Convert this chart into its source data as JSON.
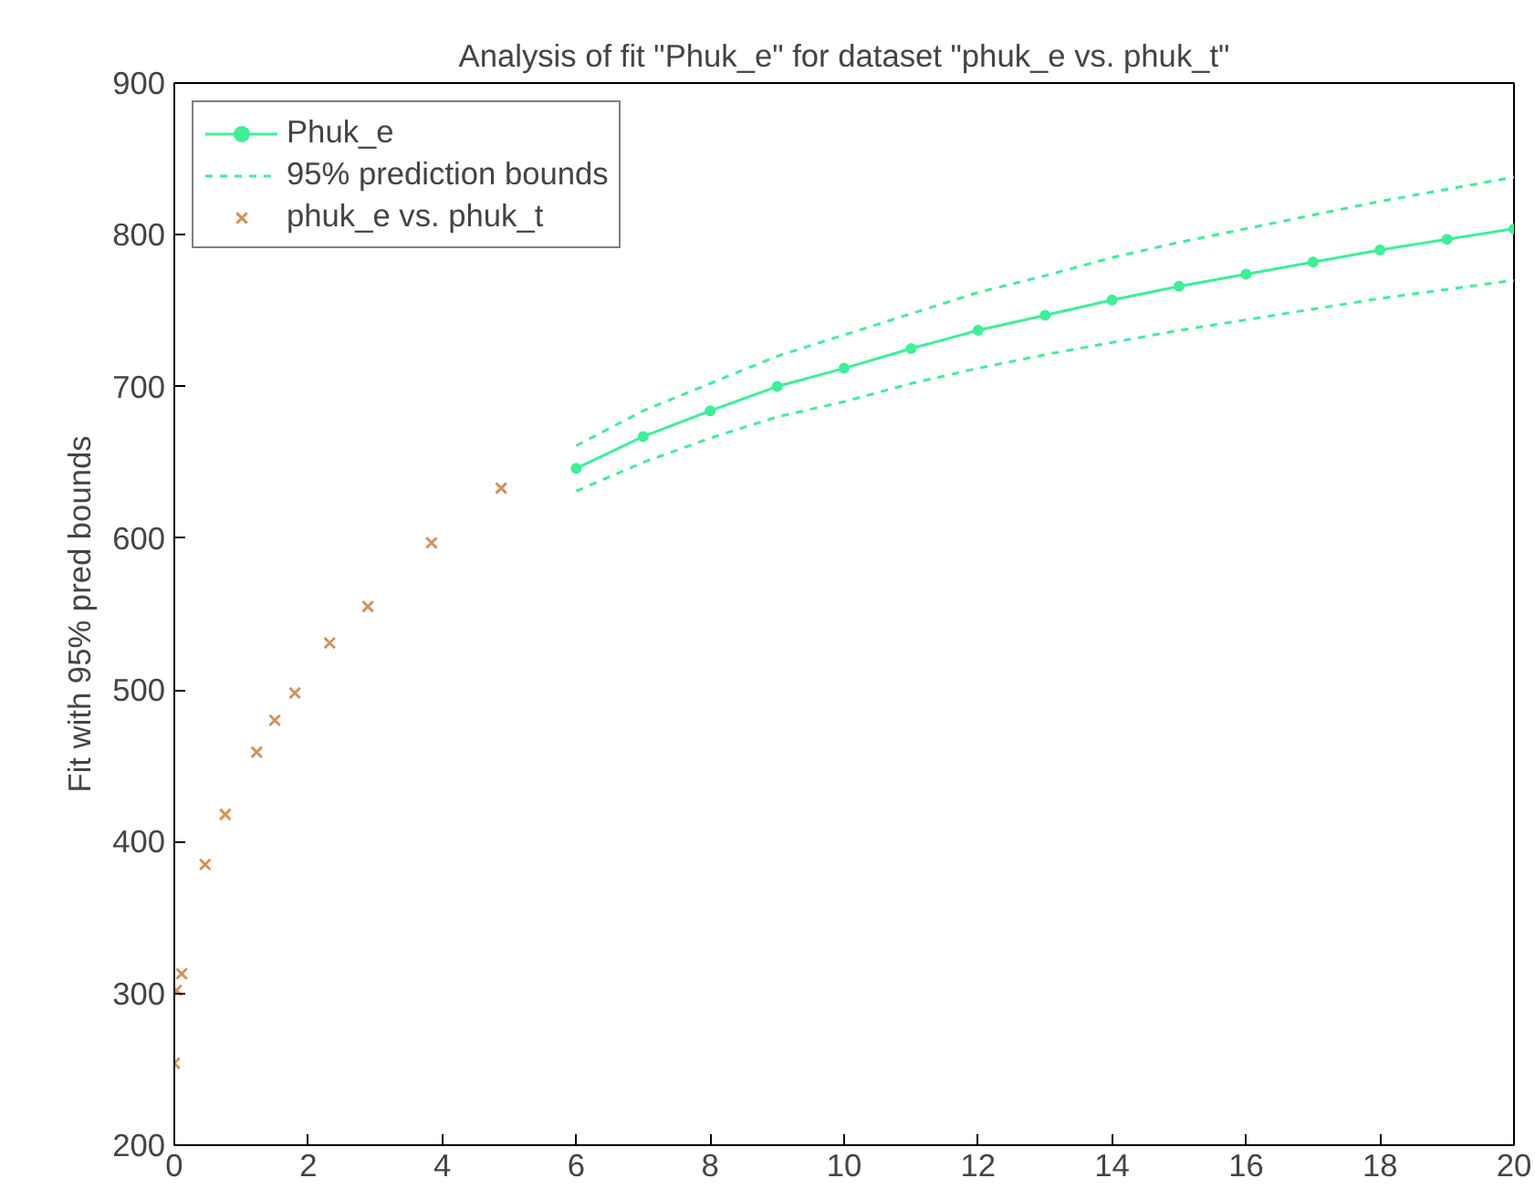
{
  "chart_data": {
    "type": "line",
    "title": "Analysis of fit \"Phuk_e\" for dataset \"phuk_e vs. phuk_t\"",
    "ylabel": "Fit with 95% pred bounds",
    "xlim": [
      0,
      20
    ],
    "ylim": [
      200,
      900
    ],
    "xticks": [
      0,
      2,
      4,
      6,
      8,
      10,
      12,
      14,
      16,
      18,
      20
    ],
    "yticks": [
      200,
      300,
      400,
      500,
      600,
      700,
      800,
      900
    ],
    "grid": false,
    "legend": "top left",
    "series": [
      {
        "name": "Phuk_e",
        "color": "#3df097",
        "marker": "circle",
        "line_style": "solid",
        "x": [
          6,
          7,
          8,
          9,
          10,
          11,
          12,
          13,
          14,
          15,
          16,
          17,
          18,
          19,
          20
        ],
        "values": [
          646,
          667,
          684,
          700,
          712,
          725,
          737,
          747,
          757,
          766,
          774,
          782,
          790,
          797,
          804
        ]
      },
      {
        "name": "95% prediction bounds",
        "color": "#3df097",
        "marker": "none",
        "line_style": "dashed",
        "x": [
          6,
          7,
          8,
          9,
          10,
          11,
          12,
          13,
          14,
          15,
          16,
          17,
          18,
          19,
          20
        ],
        "values": [
          661,
          684,
          702,
          720,
          734,
          748,
          762,
          773,
          785,
          795,
          804,
          813,
          822,
          830,
          838
        ]
      },
      {
        "color": "#3df097",
        "marker": "none",
        "line_style": "dashed",
        "x": [
          6,
          7,
          8,
          9,
          10,
          11,
          12,
          13,
          14,
          15,
          16,
          17,
          18,
          19,
          20
        ],
        "values": [
          631,
          650,
          666,
          680,
          690,
          702,
          712,
          721,
          729,
          737,
          744,
          751,
          758,
          764,
          770
        ]
      },
      {
        "name": "phuk_e vs. phuk_t",
        "type": "scatter",
        "color": "#d4925a",
        "marker": "cross",
        "x": [
          0,
          0.03,
          0.11,
          0.46,
          0.76,
          1.23,
          1.5,
          1.8,
          2.32,
          2.89,
          3.84,
          4.88
        ],
        "values": [
          254,
          302,
          313,
          385,
          418,
          459,
          480,
          498,
          531,
          555,
          597,
          633
        ]
      }
    ]
  }
}
